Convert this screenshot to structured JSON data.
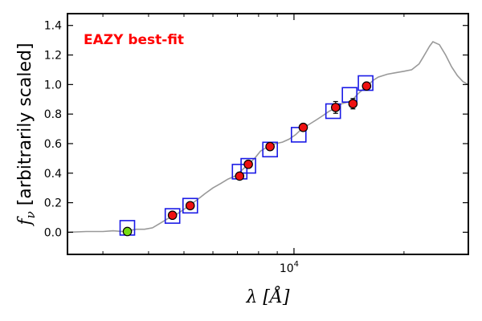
{
  "chart_data": {
    "type": "scatter",
    "title": "",
    "annotation": "EAZY best-fit",
    "xlabel": "λ [Å]",
    "ylabel": "f_ν [arbitrarily scaled]",
    "xscale": "log",
    "xlim": [
      2400,
      30000
    ],
    "ylim": [
      -0.15,
      1.48
    ],
    "yticks": [
      0.0,
      0.2,
      0.4,
      0.6,
      0.8,
      1.0,
      1.2,
      1.4
    ],
    "ytick_labels": [
      "0.0",
      "0.2",
      "0.4",
      "0.6",
      "0.8",
      "1.0",
      "1.2",
      "1.4"
    ],
    "xtick_major": [
      10000
    ],
    "xtick_major_labels": [
      "10^4"
    ],
    "xtick_minor": [
      3000,
      4000,
      5000,
      6000,
      7000,
      8000,
      9000,
      20000
    ],
    "colors": {
      "template": "#999999",
      "model_box": "#1a1ae6",
      "observed": "#ee1111",
      "observed_special": "#77dd11",
      "annotation": "#ff0000",
      "errorbar": "#000000"
    },
    "series": [
      {
        "name": "EAZY best-fit template",
        "kind": "line",
        "x": [
          2400,
          2700,
          3000,
          3200,
          3400,
          3700,
          3900,
          4100,
          4300,
          4500,
          4700,
          4900,
          5100,
          5300,
          5500,
          5700,
          6000,
          6300,
          6600,
          6900,
          7200,
          7500,
          7800,
          8100,
          8500,
          8900,
          9300,
          9700,
          10100,
          10500,
          11000,
          11500,
          12000,
          12500,
          13000,
          13500,
          14000,
          14500,
          15000,
          15500,
          16000,
          16500,
          17000,
          18000,
          19000,
          20000,
          21000,
          22000,
          22500,
          23000,
          23500,
          24000,
          25000,
          26000,
          27000,
          28000,
          29000,
          30000
        ],
        "y": [
          0.0,
          0.005,
          0.005,
          0.01,
          0.005,
          0.02,
          0.02,
          0.03,
          0.06,
          0.09,
          0.11,
          0.14,
          0.17,
          0.2,
          0.23,
          0.26,
          0.3,
          0.33,
          0.36,
          0.38,
          0.42,
          0.46,
          0.5,
          0.55,
          0.58,
          0.6,
          0.61,
          0.63,
          0.66,
          0.7,
          0.73,
          0.76,
          0.79,
          0.82,
          0.84,
          0.87,
          0.88,
          0.9,
          0.94,
          0.97,
          1.0,
          1.03,
          1.05,
          1.07,
          1.08,
          1.09,
          1.1,
          1.14,
          1.18,
          1.22,
          1.26,
          1.29,
          1.27,
          1.2,
          1.12,
          1.06,
          1.02,
          1.0
        ]
      },
      {
        "name": "Template synthetic photometry",
        "kind": "box",
        "x": [
          3500,
          4650,
          5200,
          7100,
          7500,
          8600,
          10300,
          12800,
          14200,
          15700
        ],
        "y": [
          0.03,
          0.11,
          0.18,
          0.41,
          0.45,
          0.56,
          0.66,
          0.82,
          0.93,
          1.01
        ]
      },
      {
        "name": "Observed photometry",
        "kind": "point",
        "x": [
          3500,
          4650,
          5200,
          7100,
          7500,
          8600,
          10600,
          13000,
          14500,
          15800
        ],
        "y": [
          0.005,
          0.115,
          0.18,
          0.38,
          0.46,
          0.58,
          0.71,
          0.845,
          0.87,
          0.99
        ],
        "yerr": [
          0.01,
          0.01,
          0.015,
          0.015,
          0.015,
          0.025,
          0.02,
          0.04,
          0.035,
          0.015
        ],
        "highlight_index": 0
      }
    ]
  }
}
